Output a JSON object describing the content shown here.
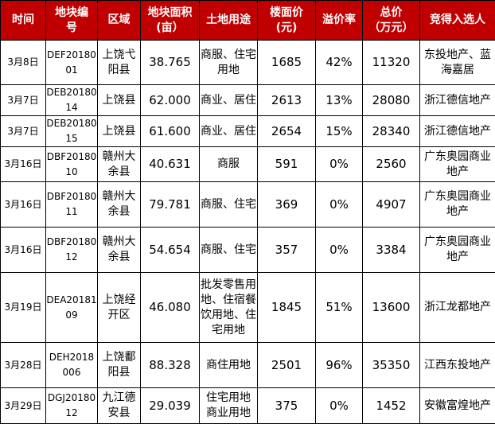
{
  "header_bg": "#c00000",
  "headers": [
    "时间",
    "地块编\n号",
    "区域",
    "地块面积\n(亩）",
    "土地用途",
    "楼面价\n(元)",
    "溢价率",
    "总价\n（万元）",
    "竞得入选人"
  ],
  "rows": [
    {
      "date": "3月8日",
      "code": "DEF20180\n01",
      "area": "上饶弋\n阳县",
      "size": "38.765",
      "use": "商服、住宅\n用地",
      "price": "1685",
      "premium": "42%",
      "total": "11320",
      "winner": "东投地产、蓝\n海嘉居"
    },
    {
      "date": "3月7日",
      "code": "DEB20180\n14",
      "area": "上饶县",
      "size": "62.000",
      "use": "商业、居住",
      "price": "2613",
      "premium": "13%",
      "total": "28080",
      "winner": "浙江德信地产"
    },
    {
      "date": "3月7日",
      "code": "DEB20180\n15",
      "area": "上饶县",
      "size": "61.600",
      "use": "商业、居住",
      "price": "2654",
      "premium": "15%",
      "total": "28340",
      "winner": "浙江德信地产"
    },
    {
      "date": "3月16日",
      "code": "DBF20180\n10",
      "area": "赣州大\n余县",
      "size": "40.631",
      "use": "商服",
      "price": "591",
      "premium": "0%",
      "total": "2560",
      "winner": "广东奥园商业\n地产"
    },
    {
      "date": "3月16日",
      "code": "DBF20180\n11",
      "area": "赣州大\n余县",
      "size": "79.781",
      "use": "商服、住宅",
      "price": "369",
      "premium": "0%",
      "total": "4907",
      "winner": "广东奥园商业\n地产"
    },
    {
      "date": "3月16日",
      "code": "DBF20180\n12",
      "area": "赣州大\n余县",
      "size": "54.654",
      "use": "商服、住宅",
      "price": "357",
      "premium": "0%",
      "total": "3384",
      "winner": "广东奥园商业\n地产"
    },
    {
      "date": "3月19日",
      "code": "DEA20181\n09",
      "area": "上饶经\n开区",
      "size": "46.080",
      "use": "批发零售用\n地、住宿餐\n饮用地、住\n宅用地",
      "price": "1845",
      "premium": "51%",
      "total": "13600",
      "winner": "浙江龙都地产"
    },
    {
      "date": "3月28日",
      "code": "DEH2018\n006",
      "area": "上饶鄱\n阳县",
      "size": "88.328",
      "use": "商住用地",
      "price": "2501",
      "premium": "96%",
      "total": "35350",
      "winner": "江西东投地产"
    },
    {
      "date": "3月29日",
      "code": "DGJ20180\n12",
      "area": "九江德\n安县",
      "size": "29.039",
      "use": "住宅用地\n商业用地",
      "price": "375",
      "premium": "0%",
      "total": "1452",
      "winner": "安徽富煌地产"
    }
  ]
}
